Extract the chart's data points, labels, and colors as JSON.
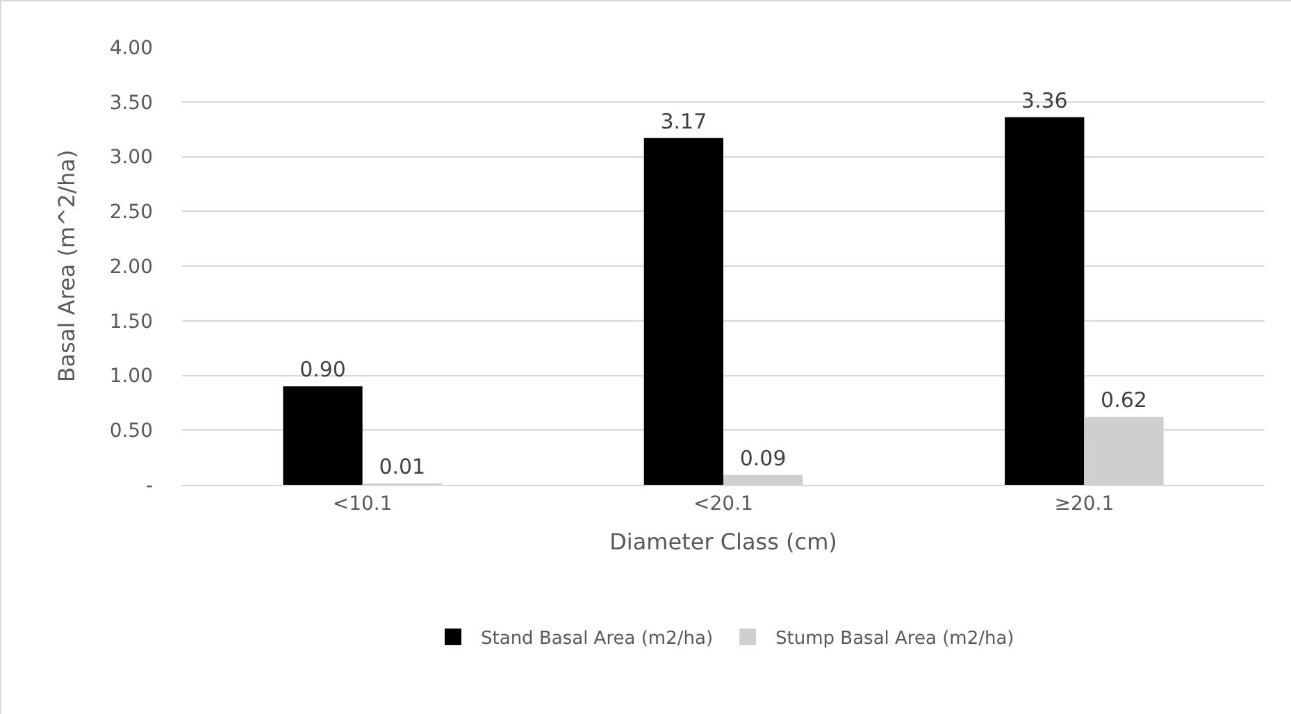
{
  "chart_data": {
    "type": "bar",
    "xlabel": "Diameter Class (cm)",
    "ylabel": "Basal Area (m^2/ha)",
    "categories": [
      "<10.1",
      "<20.1",
      "≥20.1"
    ],
    "series": [
      {
        "name": "Stand Basal Area (m2/ha)",
        "color": "#000000",
        "values": [
          0.9,
          3.17,
          3.36
        ],
        "value_labels": [
          "0.90",
          "3.17",
          "3.36"
        ]
      },
      {
        "name": "Stump Basal Area (m2/ha)",
        "color": "#d0cece",
        "values": [
          0.01,
          0.09,
          0.62
        ],
        "value_labels": [
          "0.01",
          "0.09",
          "0.62"
        ]
      }
    ],
    "ylim": [
      0,
      4
    ],
    "yticks": [
      {
        "value": 0,
        "label": "-"
      },
      {
        "value": 0.5,
        "label": "0.50"
      },
      {
        "value": 1,
        "label": "1.00"
      },
      {
        "value": 1.5,
        "label": "1.50"
      },
      {
        "value": 2,
        "label": "2.00"
      },
      {
        "value": 2.5,
        "label": "2.50"
      },
      {
        "value": 3,
        "label": "3.00"
      },
      {
        "value": 3.5,
        "label": "3.50"
      },
      {
        "value": 4,
        "label": "4.00"
      }
    ],
    "grid": "y",
    "legend": "bottom"
  }
}
